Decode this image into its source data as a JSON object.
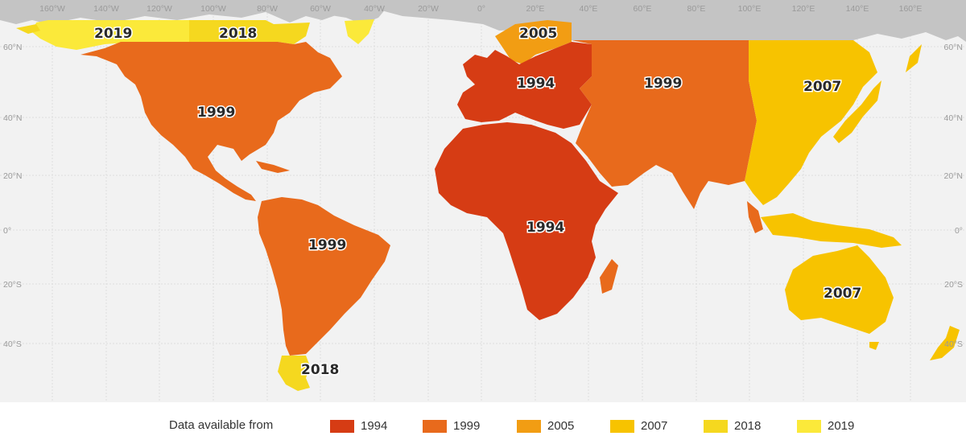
{
  "map": {
    "longitude_labels": [
      "160°W",
      "140°W",
      "120°W",
      "100°W",
      "80°W",
      "60°W",
      "40°W",
      "20°W",
      "0°",
      "20°E",
      "40°E",
      "60°E",
      "80°E",
      "100°E",
      "120°E",
      "140°E",
      "160°E"
    ],
    "latitude_labels": [
      "60°N",
      "40°N",
      "20°N",
      "0°",
      "20°S",
      "40°S"
    ],
    "region_labels": [
      {
        "text": "2019",
        "year": "2019"
      },
      {
        "text": "2018",
        "year": "2018"
      },
      {
        "text": "2005",
        "year": "2005"
      },
      {
        "text": "1994",
        "year": "1994"
      },
      {
        "text": "1999",
        "year": "1999"
      },
      {
        "text": "1999",
        "year": "1999"
      },
      {
        "text": "2007",
        "year": "2007"
      },
      {
        "text": "1994",
        "year": "1994"
      },
      {
        "text": "1999",
        "year": "1999"
      },
      {
        "text": "2007",
        "year": "2007"
      },
      {
        "text": "2018",
        "year": "2018"
      }
    ]
  },
  "legend": {
    "title": "Data available from",
    "items": [
      {
        "label": "1994",
        "color": "#d63c14"
      },
      {
        "label": "1999",
        "color": "#e86a1c"
      },
      {
        "label": "2005",
        "color": "#f29d13"
      },
      {
        "label": "2007",
        "color": "#f7c300"
      },
      {
        "label": "2018",
        "color": "#f5d81f"
      },
      {
        "label": "2019",
        "color": "#fbe93a"
      }
    ]
  },
  "colors": {
    "ocean": "#f2f2f2",
    "no_data_land": "#c4c4c4",
    "grid": "#dedede"
  }
}
